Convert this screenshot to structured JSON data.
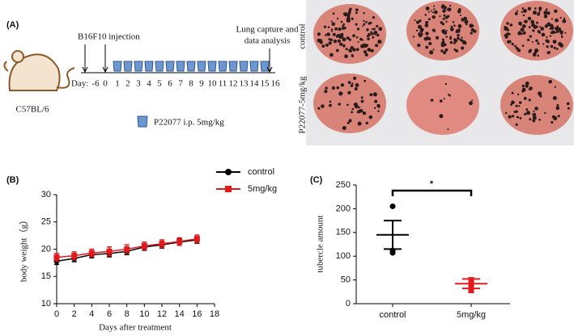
{
  "panel_a": {
    "label": "(A)",
    "injection": "B16F10 injection",
    "capture": [
      "Lung capture and",
      "data analysis"
    ],
    "day_label": "Day:",
    "days": [
      "-6",
      "0",
      "1",
      "2",
      "3",
      "4",
      "5",
      "6",
      "7",
      "8",
      "9",
      "10",
      "11",
      "12",
      "13",
      "14",
      "15",
      "16"
    ],
    "strain": "C57BL/6",
    "treatment": "P22077 i.p. 5mg/kg",
    "photo_rows": [
      "control",
      "P22077-5mg/kg"
    ]
  },
  "chart_data": [
    {
      "type": "line",
      "label": "(B)",
      "x": [
        0,
        2,
        4,
        6,
        8,
        10,
        12,
        14,
        16
      ],
      "series": [
        {
          "name": "control",
          "color": "#000000",
          "marker": "circle",
          "values": [
            17.8,
            18.3,
            19.0,
            19.2,
            19.6,
            20.4,
            20.8,
            21.3,
            21.7
          ],
          "errors": [
            0.6,
            0.6,
            0.6,
            0.6,
            0.6,
            0.6,
            0.6,
            0.6,
            0.6
          ]
        },
        {
          "name": "5mg/kg",
          "color": "#e31a1c",
          "marker": "square",
          "values": [
            18.5,
            18.8,
            19.3,
            19.6,
            20.0,
            20.6,
            21.0,
            21.4,
            21.9
          ],
          "errors": [
            0.7,
            0.7,
            0.7,
            0.8,
            0.8,
            0.7,
            0.7,
            0.7,
            0.7
          ]
        }
      ],
      "xlim": [
        0,
        18
      ],
      "xticks": [
        0,
        2,
        4,
        6,
        8,
        10,
        12,
        14,
        16,
        18
      ],
      "ylim": [
        10,
        30
      ],
      "yticks": [
        10,
        15,
        20,
        25,
        30
      ],
      "xlabel": "Days after treatment",
      "ylabel": "body weight（g）"
    },
    {
      "type": "dot",
      "label": "(C)",
      "categories": [
        "control",
        "5mg/kg"
      ],
      "colors": [
        "#000000",
        "#e31a1c"
      ],
      "values": [
        [
          205,
          112,
          107
        ],
        [
          50,
          40,
          28
        ]
      ],
      "mean": [
        145,
        42
      ],
      "error": [
        30,
        10
      ],
      "ylim": [
        0,
        250
      ],
      "yticks": [
        0,
        50,
        100,
        150,
        200,
        250
      ],
      "ylabel": "tubercle amount",
      "annotation": "*"
    }
  ]
}
